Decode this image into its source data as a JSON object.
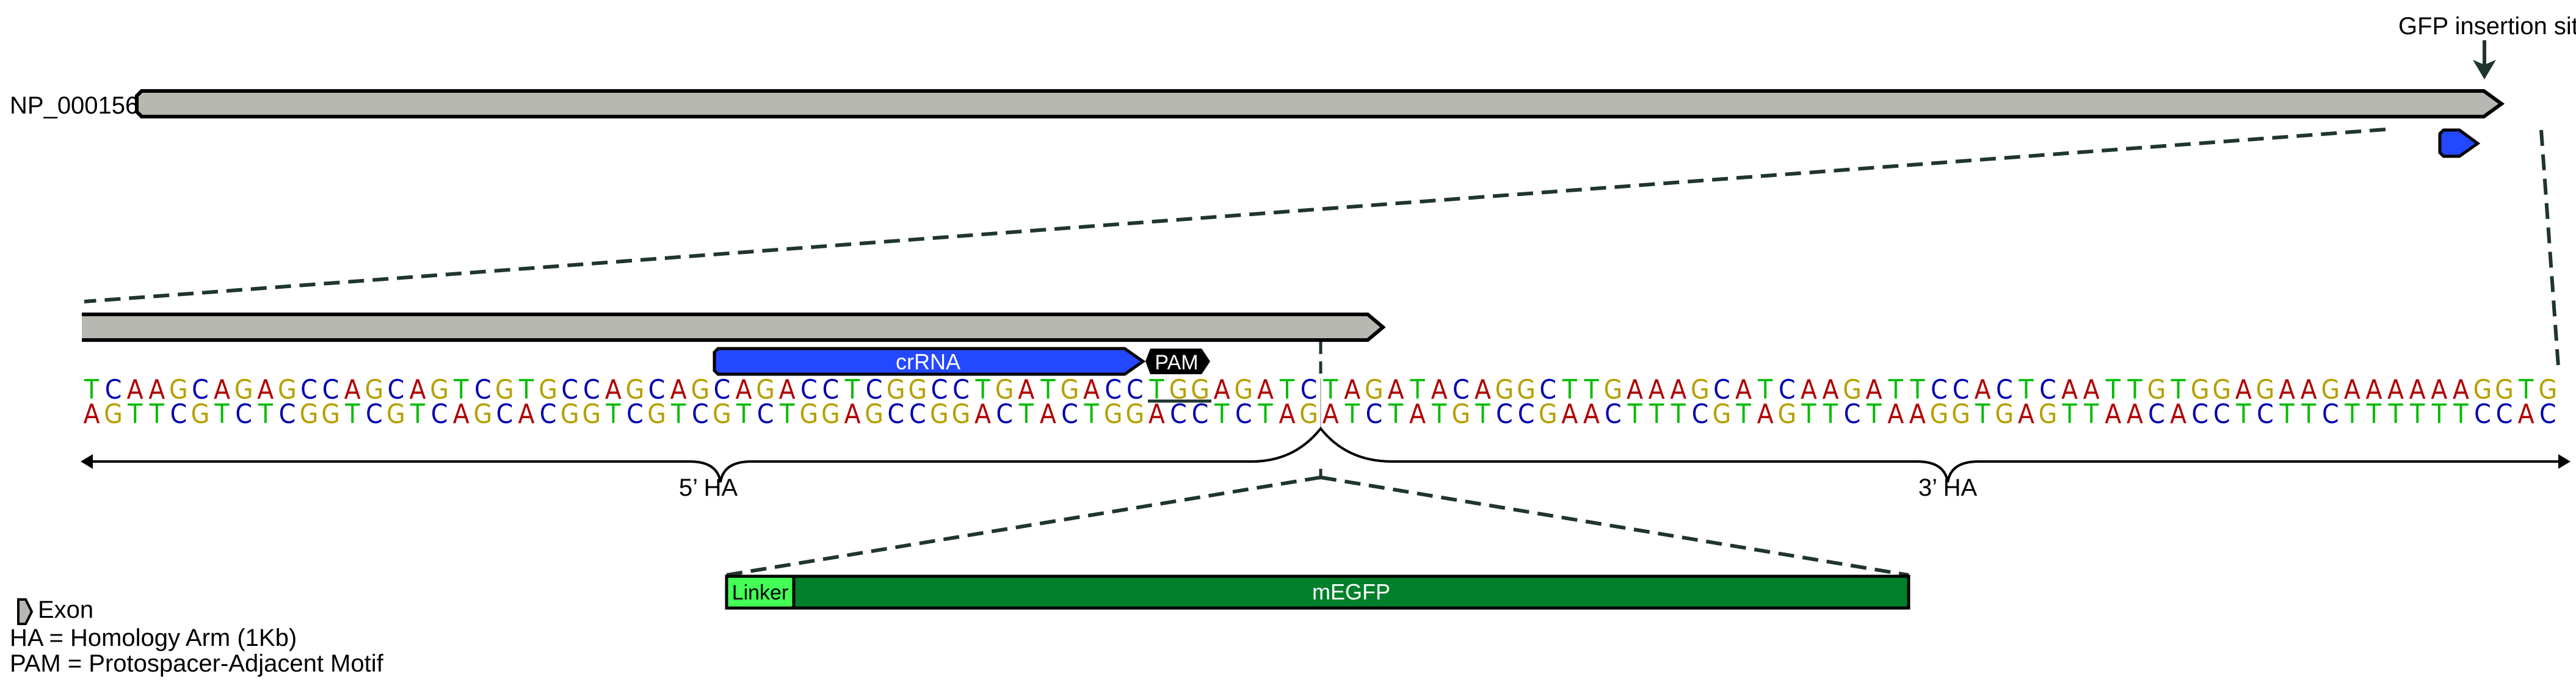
{
  "gene": {
    "label": "NP_000156"
  },
  "insertion": {
    "label": "GFP insertion site"
  },
  "features": {
    "crrna": "crRNA",
    "pam": "PAM",
    "linker": "Linker",
    "megfp": "mEGFP"
  },
  "sequence": {
    "top": "TCAAGCAGAGCCAGCAGTCGTGCCAGCAGCAGACCTCGGCCTGATGACCTGGAGATCTAGATACAGGCTTGAAAGCATCAAGATTCCACTCAATTGTGGAGAAGAAAAAAGGTG",
    "bottom": "AGTTCGTCTCGGTCGTCAGCACGGTCGTCGTCTGGAGCCGGACTACTGGACCTCTAGATCTATGTCCGAACTTTCGTAGTTCTAAGGTGAGTTAACACCTCTTCTTTTTTCCAC",
    "pam_underlined": "TGG"
  },
  "arms": {
    "left": "5’ HA",
    "right": "3’ HA"
  },
  "legend": {
    "exon": "Exon",
    "ha": "HA = Homology Arm (1Kb)",
    "pam": "PAM = Protospacer-Adjacent Motif"
  },
  "colors": {
    "exon": "#b8b8b2",
    "crrna": "#2448ff",
    "pam": "#000000",
    "linker": "#44ff55",
    "megfp": "#00802a",
    "A": "#b00000",
    "C": "#0000b0",
    "G": "#b5a000",
    "T": "#00bb00"
  }
}
